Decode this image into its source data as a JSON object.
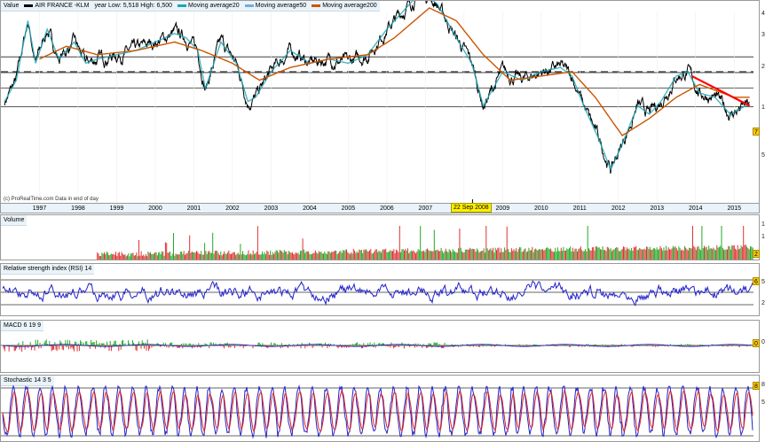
{
  "header": {
    "value_label": "Value",
    "instrument": "AIR FRANCE -KLM",
    "range_text": "year Low: 5,518 High: 6,500",
    "ma20": "Moving average20",
    "ma50": "Moving average50",
    "ma200": "Moving average200"
  },
  "source_note": "(c) ProRealTime.com  Data in end of day",
  "cursor_date": "22 Sep 2008",
  "years": [
    "1997",
    "1998",
    "1999",
    "2000",
    "2001",
    "2002",
    "2003",
    "2004",
    "2005",
    "2006",
    "2007",
    "2008",
    "2009",
    "2010",
    "2011",
    "2012",
    "2013",
    "2014",
    "2015"
  ],
  "price_axis": [
    "4",
    "3",
    "2",
    "1",
    "5"
  ],
  "price_badge": "7",
  "volume": {
    "title": "Volume",
    "axis": [
      "1",
      "1"
    ],
    "badge": "2"
  },
  "rsi": {
    "title": "Relative strength index (RSI) 14",
    "axis": [
      "5",
      "2"
    ],
    "badge": "6"
  },
  "macd": {
    "title": "MACD 6 19 9",
    "axis": [
      "0"
    ],
    "badge": "0"
  },
  "stoch": {
    "title": "Stochastic 14 3 5",
    "axis": [
      "8",
      "5"
    ],
    "badge": "8"
  },
  "colors": {
    "price": "#000000",
    "ma20": "#1aa6b7",
    "ma50": "#1aa6b7",
    "ma200": "#cc5500",
    "trend": "#ff0000",
    "rsi": "#2222cc",
    "stoch_k": "#2222cc",
    "stoch_d": "#dd2222",
    "up": "#22aa22",
    "down": "#dd3333"
  },
  "chart_data": {
    "type": "line",
    "x_range": [
      1996.5,
      2016.0
    ],
    "price_keypoints": [
      [
        1996.6,
        1.3
      ],
      [
        1996.9,
        1.8
      ],
      [
        1997.2,
        3.2
      ],
      [
        1997.4,
        2.2
      ],
      [
        1997.7,
        3.0
      ],
      [
        1998.0,
        2.3
      ],
      [
        1998.4,
        2.7
      ],
      [
        1998.7,
        2.2
      ],
      [
        1999.0,
        2.3
      ],
      [
        1999.5,
        2.4
      ],
      [
        2000.0,
        2.5
      ],
      [
        2000.5,
        2.7
      ],
      [
        2001.0,
        2.9
      ],
      [
        2001.3,
        2.8
      ],
      [
        2001.6,
        2.5
      ],
      [
        2001.8,
        1.6
      ],
      [
        2002.2,
        2.7
      ],
      [
        2002.6,
        2.2
      ],
      [
        2002.9,
        1.3
      ],
      [
        2003.1,
        1.4
      ],
      [
        2003.5,
        2.0
      ],
      [
        2004.0,
        2.5
      ],
      [
        2004.5,
        2.2
      ],
      [
        2005.0,
        2.3
      ],
      [
        2005.5,
        2.2
      ],
      [
        2006.0,
        2.4
      ],
      [
        2006.5,
        3.0
      ],
      [
        2007.0,
        3.5
      ],
      [
        2007.4,
        3.9
      ],
      [
        2007.8,
        3.6
      ],
      [
        2008.3,
        2.8
      ],
      [
        2008.7,
        2.2
      ],
      [
        2009.0,
        1.2
      ],
      [
        2009.5,
        2.0
      ],
      [
        2010.0,
        1.8
      ],
      [
        2010.5,
        2.0
      ],
      [
        2011.0,
        2.1
      ],
      [
        2011.3,
        1.9
      ],
      [
        2011.6,
        1.2
      ],
      [
        2012.0,
        0.4
      ],
      [
        2012.3,
        -0.3
      ],
      [
        2012.6,
        0.3
      ],
      [
        2013.0,
        1.2
      ],
      [
        2013.3,
        1.0
      ],
      [
        2013.6,
        1.3
      ],
      [
        2014.0,
        1.9
      ],
      [
        2014.3,
        2.0
      ],
      [
        2014.6,
        1.5
      ],
      [
        2015.0,
        1.4
      ],
      [
        2015.4,
        1.0
      ],
      [
        2015.8,
        1.2
      ]
    ],
    "ma200_keypoints": [
      [
        1997.5,
        2.3
      ],
      [
        1998.2,
        2.6
      ],
      [
        1999.0,
        2.4
      ],
      [
        2000.0,
        2.5
      ],
      [
        2001.0,
        2.7
      ],
      [
        2001.7,
        2.5
      ],
      [
        2002.5,
        2.2
      ],
      [
        2003.2,
        1.8
      ],
      [
        2004.0,
        2.1
      ],
      [
        2005.0,
        2.3
      ],
      [
        2006.0,
        2.4
      ],
      [
        2006.7,
        2.8
      ],
      [
        2007.6,
        3.5
      ],
      [
        2008.3,
        3.2
      ],
      [
        2009.0,
        2.4
      ],
      [
        2009.7,
        1.8
      ],
      [
        2010.5,
        1.9
      ],
      [
        2011.3,
        2.0
      ],
      [
        2011.9,
        1.4
      ],
      [
        2012.6,
        0.5
      ],
      [
        2013.3,
        0.9
      ],
      [
        2014.0,
        1.4
      ],
      [
        2014.6,
        1.7
      ],
      [
        2015.5,
        1.4
      ]
    ],
    "trend_line": [
      [
        2014.4,
        1.9
      ],
      [
        2015.9,
        1.2
      ]
    ],
    "h_levels": [
      2.35,
      1.98,
      1.62,
      1.18
    ],
    "dashed_level": 2.0
  }
}
